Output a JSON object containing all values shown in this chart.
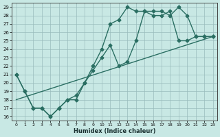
{
  "bg_color": "#c8e8e4",
  "line_color": "#2a6e62",
  "xlabel": "Humidex (Indice chaleur)",
  "xlim": [
    -0.5,
    23.5
  ],
  "ylim": [
    15.5,
    29.5
  ],
  "xticks": [
    0,
    1,
    2,
    3,
    4,
    5,
    6,
    7,
    8,
    9,
    10,
    11,
    12,
    13,
    14,
    15,
    16,
    17,
    18,
    19,
    20,
    21,
    22,
    23
  ],
  "yticks": [
    16,
    17,
    18,
    19,
    20,
    21,
    22,
    23,
    24,
    25,
    26,
    27,
    28,
    29
  ],
  "line1_x": [
    0,
    1,
    2,
    3,
    4,
    5,
    6,
    7,
    8,
    9,
    10,
    11,
    12,
    13,
    14,
    15,
    16,
    17,
    18,
    19,
    20,
    21,
    22,
    23
  ],
  "line1_y": [
    21,
    19,
    17,
    17,
    16,
    17,
    18,
    18.5,
    20,
    22,
    24,
    27,
    27.5,
    29,
    28.5,
    28.5,
    28.5,
    28.5,
    28,
    29,
    28,
    25.5,
    25.5,
    25.5
  ],
  "line2_x": [
    0,
    1,
    2,
    3,
    4,
    5,
    6,
    7,
    8,
    9,
    10,
    11,
    12,
    13,
    14,
    15,
    16,
    17,
    18,
    19,
    20,
    21,
    22,
    23
  ],
  "line2_y": [
    21,
    19,
    17,
    17,
    16,
    17,
    18,
    18,
    20,
    21.5,
    23,
    24.5,
    22,
    22.5,
    25,
    28.5,
    28,
    28,
    28.5,
    25,
    25,
    25.5,
    25.5,
    25.5
  ],
  "line3_x": [
    0,
    23
  ],
  "line3_y": [
    18,
    25.5
  ]
}
